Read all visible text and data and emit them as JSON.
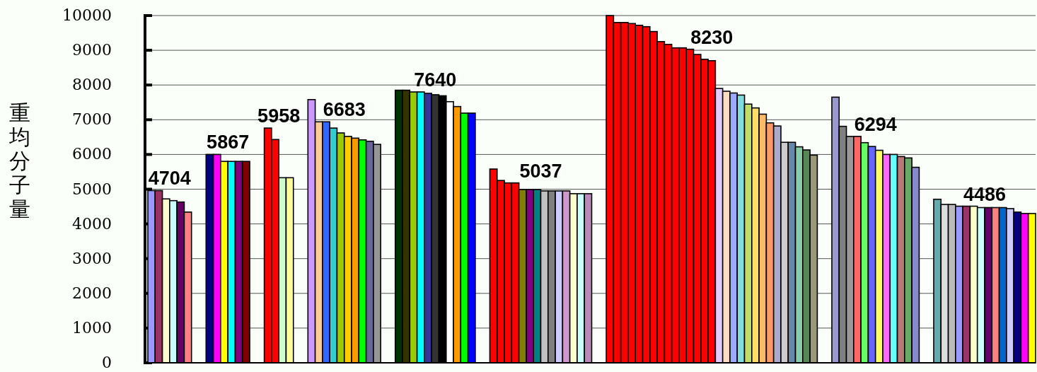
{
  "chart_data": {
    "type": "bar",
    "ylabel": "重均分子量",
    "categories": [
      null,
      null,
      null,
      null,
      null,
      null,
      null,
      null,
      null,
      null,
      null,
      null,
      null,
      null,
      null,
      null,
      null,
      null,
      null,
      null,
      null,
      null,
      null,
      null,
      null,
      null,
      null,
      null,
      null,
      null,
      null,
      null,
      null,
      null,
      null,
      null,
      null,
      null,
      null,
      null,
      null,
      null,
      null,
      null,
      null,
      null,
      null,
      null,
      null,
      null,
      null,
      null,
      null,
      null,
      null,
      null,
      null,
      null,
      null,
      null,
      null,
      null,
      null,
      null,
      null,
      null,
      null,
      null,
      null,
      null,
      null,
      null,
      null,
      null,
      null,
      null,
      null,
      null,
      null,
      null,
      null,
      null,
      null,
      null,
      null,
      null,
      null,
      null,
      null,
      null,
      null,
      null,
      null,
      null,
      null,
      null,
      null,
      null,
      null,
      null,
      null,
      null,
      null,
      null,
      null,
      null,
      null,
      null,
      null,
      null,
      null,
      null,
      null,
      null,
      null,
      null,
      null,
      null,
      null,
      null,
      null,
      null
    ],
    "values": [
      4960,
      4960,
      4720,
      4670,
      4630,
      4340,
      null,
      null,
      6000,
      6000,
      5800,
      5800,
      5800,
      5800,
      null,
      null,
      6760,
      6430,
      5330,
      5330,
      null,
      null,
      7580,
      6940,
      6940,
      6760,
      6620,
      6520,
      6470,
      6420,
      6380,
      6290,
      null,
      null,
      7850,
      7850,
      7800,
      7800,
      7760,
      7720,
      7690,
      7520,
      7380,
      7190,
      7190,
      null,
      null,
      5580,
      5250,
      5180,
      5180,
      4990,
      4990,
      4990,
      4950,
      4950,
      4950,
      4950,
      4870,
      4870,
      4870,
      null,
      null,
      10000,
      9800,
      9800,
      9770,
      9720,
      9680,
      9540,
      9250,
      9170,
      9070,
      9070,
      9030,
      8880,
      8740,
      8700,
      7900,
      7820,
      7770,
      7710,
      7450,
      7340,
      7160,
      6910,
      6820,
      6350,
      6350,
      6220,
      6130,
      5980,
      null,
      null,
      7650,
      6810,
      6520,
      6520,
      6340,
      6230,
      6120,
      6000,
      6000,
      5940,
      5900,
      5630,
      null,
      null,
      4710,
      4560,
      4560,
      4510,
      4510,
      4510,
      4470,
      4470,
      4470,
      4470,
      4440,
      4340,
      4300,
      4300
    ],
    "colors": [
      "#9999ff",
      "#993366",
      "#ffffcc",
      "#ccffff",
      "#660066",
      "#ff8080",
      null,
      null,
      "#000080",
      "#ff00ff",
      "#ffff00",
      "#00ffff",
      "#800080",
      "#800000",
      null,
      null,
      "#ff0000",
      "#ff0000",
      "#ccffcc",
      "#ffff99",
      null,
      null,
      "#cc99ff",
      "#ffcc99",
      "#3366ff",
      "#33cccc",
      "#99cc00",
      "#ffcc00",
      "#ff9900",
      "#00ff00",
      "#666699",
      "#969696",
      null,
      null,
      "#003300",
      "#333300",
      "#99cc00",
      "#00ffff",
      "#333399",
      "#333333",
      "#000000",
      "#ffffff",
      "#ff9900",
      "#00ff00",
      "#0000ff",
      null,
      null,
      "#ff0000",
      "#ff0000",
      "#ff0000",
      "#ff0000",
      "#808000",
      "#800080",
      "#008080",
      "#c0c0c0",
      "#808080",
      "#ccccff",
      "#cc99cc",
      "#ffffcc",
      "#ccffff",
      "#bb88bb",
      null,
      null,
      "#ff0000",
      "#ff0000",
      "#ff0000",
      "#ff0000",
      "#ff0000",
      "#ff0000",
      "#ff0000",
      "#ff0000",
      "#ff0000",
      "#ff0000",
      "#ff0000",
      "#ff0000",
      "#ff0000",
      "#ff0000",
      "#ff0000",
      "#e0ccff",
      "#ffdcc0",
      "#99aaff",
      "#80dddd",
      "#c0dd66",
      "#ffdd66",
      "#ffbb66",
      "#ff9966",
      "#aaaacc",
      "#cccccc",
      "#6688aa",
      "#88ccaa",
      "#558855",
      "#999977",
      null,
      null,
      "#9999cc",
      "#808080",
      "#999999",
      "#ff6666",
      "#66ff66",
      "#6666ff",
      "#ffff66",
      "#ff66ff",
      "#66ffff",
      "#bb7777",
      "#66aa66",
      "#8888cc",
      null,
      null,
      "#66aaaa",
      "#dddddd",
      "#bbbbbb",
      "#9999ff",
      "#993366",
      "#ffffcc",
      "#ccffff",
      "#660066",
      "#ff8080",
      "#0066cc",
      "#ccccff",
      "#000080",
      "#ff00ff",
      "#ffff00"
    ],
    "annotations": [
      "4704",
      "5867",
      "5958",
      "6683",
      "7640",
      "5037",
      "8230",
      "6294",
      "4486"
    ],
    "ylim": [
      0,
      10000
    ],
    "yticks": [
      0,
      1000,
      2000,
      3000,
      4000,
      5000,
      6000,
      7000,
      8000,
      9000,
      10000
    ],
    "grid": "y"
  }
}
